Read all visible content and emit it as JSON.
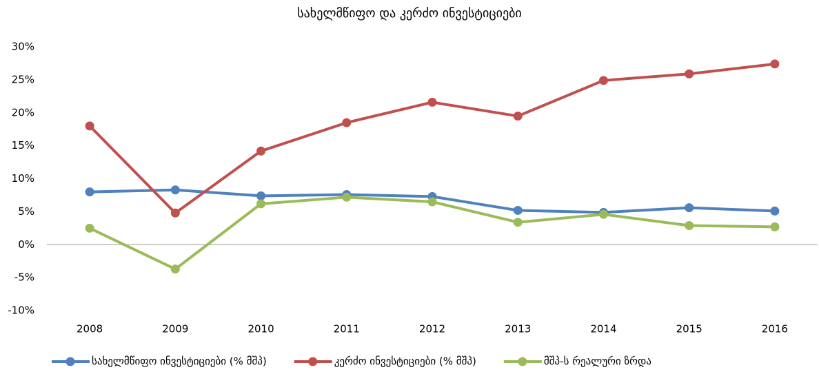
{
  "chart_data": {
    "type": "line",
    "title": "სახელმწიფო და კერძო ინვესტიციები",
    "categories": [
      "2008",
      "2009",
      "2010",
      "2011",
      "2012",
      "2013",
      "2014",
      "2015",
      "2016"
    ],
    "series": [
      {
        "name": "სახელმწიფო ინვესტიციები (% მშპ)",
        "color": "#4f81bd",
        "values": [
          8.0,
          8.3,
          7.4,
          7.6,
          7.3,
          5.2,
          4.9,
          5.6,
          5.1
        ]
      },
      {
        "name": "კერძო ინვესტიციები (% მშპ)",
        "color": "#c0504d",
        "values": [
          18.0,
          4.8,
          14.2,
          18.5,
          21.6,
          19.5,
          24.9,
          25.9,
          27.4
        ]
      },
      {
        "name": "მშპ-ს რეალური ზრდა",
        "color": "#9bbb59",
        "values": [
          2.5,
          -3.7,
          6.2,
          7.2,
          6.5,
          3.4,
          4.6,
          2.9,
          2.7
        ]
      }
    ],
    "ylim": [
      -10,
      30
    ],
    "yticks": [
      {
        "value": -10,
        "label": "-10%"
      },
      {
        "value": -5,
        "label": "-5%"
      },
      {
        "value": 0,
        "label": "0%"
      },
      {
        "value": 5,
        "label": "5%"
      },
      {
        "value": 10,
        "label": "10%"
      },
      {
        "value": 15,
        "label": "15%"
      },
      {
        "value": 20,
        "label": "20%"
      },
      {
        "value": 25,
        "label": "25%"
      },
      {
        "value": 30,
        "label": "30%"
      }
    ],
    "grid": false,
    "legend": "bottom"
  }
}
